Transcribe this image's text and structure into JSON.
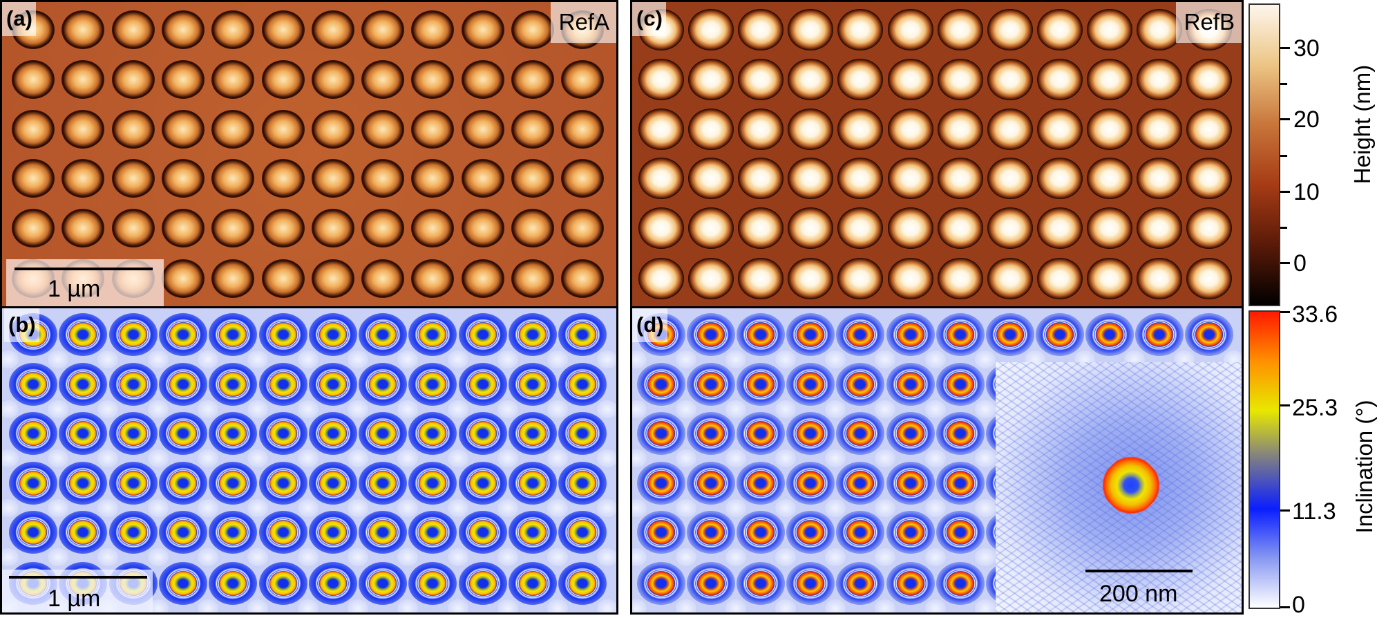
{
  "panels": {
    "a": {
      "label": "(a)",
      "tag": "RefA",
      "scale_bar": "1 µm"
    },
    "b": {
      "label": "(b)",
      "scale_bar": "1 µm"
    },
    "c": {
      "label": "(c)",
      "tag": "RefB"
    },
    "d": {
      "label": "(d)",
      "inset_scale_bar": "200 nm"
    }
  },
  "colorbars": {
    "height": {
      "title": "Height (nm)",
      "ticks": [
        "30",
        "20",
        "10",
        "0"
      ],
      "colors": [
        "#000000",
        "#5a1a08",
        "#a63b15",
        "#c8753a",
        "#ecc585",
        "#fdf6ec"
      ]
    },
    "inclination": {
      "title": "Inclination (°)",
      "ticks": [
        "33.6",
        "25.3",
        "11.3",
        "0"
      ],
      "colors": [
        "#ffffff",
        "#8898f2",
        "#0a1eff",
        "#7a7a8a",
        "#e8e800",
        "#ff9000",
        "#ff1a00"
      ]
    }
  }
}
